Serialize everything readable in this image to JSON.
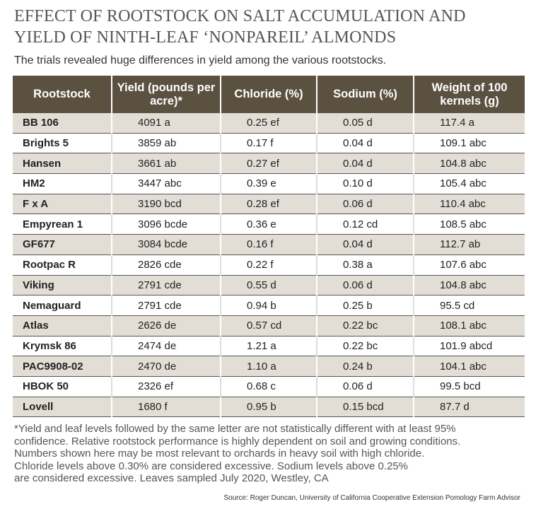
{
  "title": [
    "EFFECT OF ROOTSTOCK ON SALT ACCUMULATION AND",
    "YIELD OF NINTH-LEAF ‘NONPAREIL’ ALMONDS"
  ],
  "subtitle": "The trials revealed huge differences in yield among the various rootstocks.",
  "table": {
    "columns": [
      "Rootstock",
      "Yield (pounds per acre)*",
      "Chloride (%)",
      "Sodium (%)",
      "Weight of 100 kernels (g)"
    ],
    "rows": [
      [
        "BB 106",
        "4091 a",
        "0.25 ef",
        "0.05 d",
        "117.4 a"
      ],
      [
        "Brights 5",
        "3859 ab",
        "0.17 f",
        "0.04 d",
        "109.1 abc"
      ],
      [
        "Hansen",
        "3661 ab",
        "0.27 ef",
        "0.04 d",
        "104.8 abc"
      ],
      [
        "HM2",
        "3447 abc",
        "0.39 e",
        "0.10 d",
        "105.4 abc"
      ],
      [
        "F x A",
        "3190 bcd",
        "0.28 ef",
        "0.06 d",
        "110.4 abc"
      ],
      [
        "Empyrean 1",
        "3096 bcde",
        "0.36 e",
        "0.12 cd",
        "108.5 abc"
      ],
      [
        "GF677",
        "3084 bcde",
        "0.16 f",
        "0.04 d",
        "112.7 ab"
      ],
      [
        "Rootpac R",
        "2826 cde",
        "0.22 f",
        "0.38 a",
        "107.6 abc"
      ],
      [
        "Viking",
        "2791 cde",
        "0.55 d",
        "0.06 d",
        "104.8 abc"
      ],
      [
        "Nemaguard",
        "2791 cde",
        "0.94 b",
        "0.25 b",
        "95.5 cd"
      ],
      [
        "Atlas",
        "2626 de",
        "0.57 cd",
        "0.22 bc",
        "108.1 abc"
      ],
      [
        "Krymsk 86",
        "2474 de",
        "1.21 a",
        "0.22 bc",
        "101.9 abcd"
      ],
      [
        "PAC9908-02",
        "2470 de",
        "1.10 a",
        "0.24 b",
        "104.1 abc"
      ],
      [
        "HBOK 50",
        "2326 ef",
        "0.68 c",
        "0.06 d",
        "99.5 bcd"
      ],
      [
        "Lovell",
        "1680 f",
        "0.95 b",
        "0.15 bcd",
        "87.7 d"
      ]
    ]
  },
  "footnote": [
    "*Yield and leaf levels followed by the same letter are not statistically different with at least 95%",
    "confidence. Relative rootstock performance is highly dependent on soil and growing conditions.",
    "Numbers shown here may be most relevant to orchards in heavy soil with high chloride.",
    "Chloride levels above 0.30% are considered excessive. Sodium levels above 0.25%",
    "are considered excessive. Leaves sampled July 2020, Westley, CA"
  ],
  "source": "Source: Roger Duncan, University of California Cooperative Extension Pomology Farm Advisor"
}
